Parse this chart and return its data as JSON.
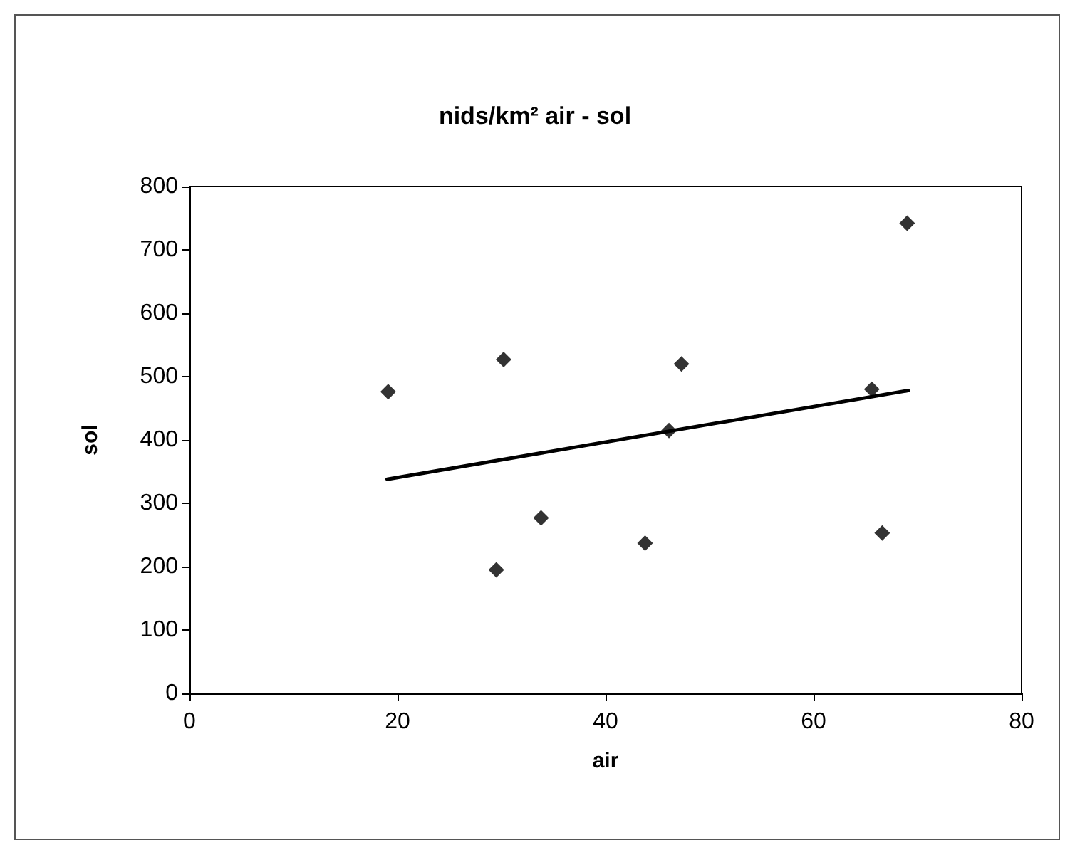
{
  "chart_data": {
    "type": "scatter",
    "title": "nids/km² air - sol",
    "xlabel": "air",
    "ylabel": "sol",
    "xlim": [
      0,
      80
    ],
    "xticks": [
      0,
      20,
      40,
      60,
      80
    ],
    "ylim": [
      0,
      800
    ],
    "yticks": [
      0,
      100,
      200,
      300,
      400,
      500,
      600,
      700,
      800
    ],
    "grid": false,
    "marker": "diamond",
    "series": [
      {
        "color": "#000000",
        "x": [
          19.1,
          30.2,
          29.5,
          33.8,
          43.8,
          46.1,
          47.3,
          65.6,
          66.6,
          69.0
        ],
        "values": [
          476,
          527,
          195,
          277,
          237,
          415,
          520,
          480,
          253,
          742
        ]
      },
      {
        "type": "line",
        "color": "#000000",
        "marker": "none",
        "line_style": "solid",
        "x": [
          19.0,
          69.1
        ],
        "values": [
          338,
          478
        ]
      }
    ]
  }
}
